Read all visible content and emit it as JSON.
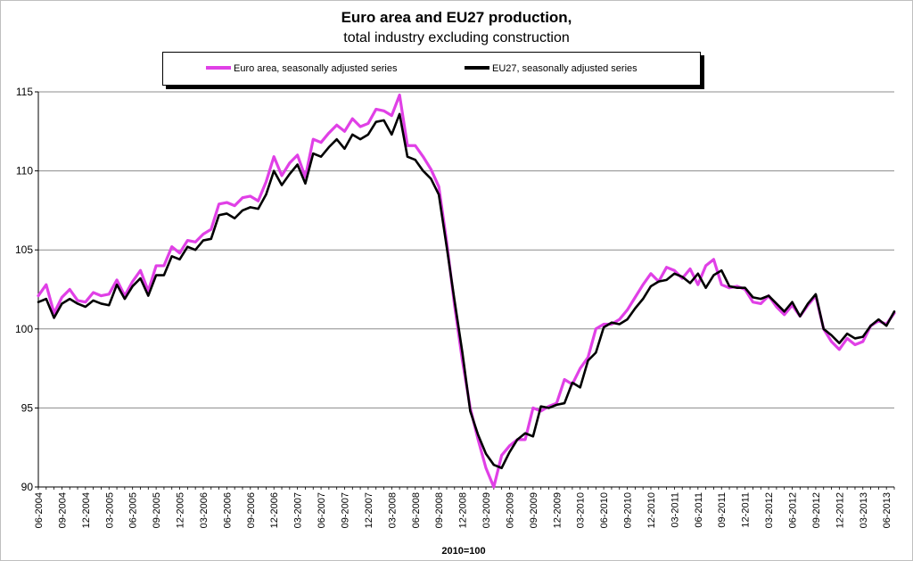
{
  "chart_data": {
    "type": "line",
    "title": "Euro area and EU27 production,",
    "subtitle": "total industry excluding construction",
    "xlabel": "2010=100",
    "ylabel": "",
    "ylim": [
      90,
      115
    ],
    "yticks": [
      90,
      95,
      100,
      105,
      110,
      115
    ],
    "grid": "horizontal",
    "legend_position": "top",
    "x_tick_labels": [
      "06-2004",
      "09-2004",
      "12-2004",
      "03-2005",
      "06-2005",
      "09-2005",
      "12-2005",
      "03-2006",
      "06-2006",
      "09-2006",
      "12-2006",
      "03-2007",
      "06-2007",
      "09-2007",
      "12-2007",
      "03-2008",
      "06-2008",
      "09-2008",
      "12-2008",
      "03-2009",
      "06-2009",
      "09-2009",
      "12-2009",
      "03-2010",
      "06-2010",
      "09-2010",
      "12-2010",
      "03-2011",
      "06-2011",
      "09-2011",
      "12-2011",
      "03-2012",
      "06-2012",
      "09-2012",
      "12-2012",
      "03-2013",
      "06-2013"
    ],
    "series": [
      {
        "name": "Euro area, seasonally adjusted series",
        "color": "#e040e6",
        "values": [
          102.1,
          102.8,
          101.0,
          102.0,
          102.5,
          101.8,
          101.7,
          102.3,
          102.1,
          102.2,
          103.1,
          102.1,
          103.0,
          103.7,
          102.4,
          104.0,
          104.0,
          105.2,
          104.8,
          105.6,
          105.5,
          106.0,
          106.3,
          107.9,
          108.0,
          107.8,
          108.3,
          108.4,
          108.1,
          109.3,
          110.9,
          109.7,
          110.5,
          111.0,
          109.6,
          112.0,
          111.8,
          112.4,
          112.9,
          112.5,
          113.3,
          112.8,
          113.0,
          113.9,
          113.8,
          113.5,
          114.8,
          111.6,
          111.6,
          110.9,
          110.1,
          109.0,
          105.5,
          101.5,
          98.0,
          95.0,
          93.0,
          91.2,
          90.0,
          92.0,
          92.6,
          93.0,
          93.0,
          95.0,
          94.8,
          95.1,
          95.3,
          96.8,
          96.5,
          97.5,
          98.2,
          100.0,
          100.3,
          100.3,
          100.6,
          101.2,
          102.0,
          102.8,
          103.5,
          103.0,
          103.9,
          103.7,
          103.2,
          103.8,
          102.8,
          104.0,
          104.4,
          102.8,
          102.6,
          102.7,
          102.5,
          101.7,
          101.6,
          102.1,
          101.4,
          100.9,
          101.5,
          100.8,
          101.5,
          102.1,
          100.0,
          99.2,
          98.7,
          99.4,
          99.0,
          99.2,
          100.2,
          100.5,
          100.3,
          101.0
        ]
      },
      {
        "name": "EU27, seasonally adjusted series",
        "color": "#000000",
        "values": [
          101.7,
          101.9,
          100.7,
          101.6,
          101.9,
          101.6,
          101.4,
          101.8,
          101.6,
          101.5,
          102.8,
          101.9,
          102.7,
          103.2,
          102.1,
          103.4,
          103.4,
          104.6,
          104.4,
          105.2,
          105.0,
          105.6,
          105.7,
          107.2,
          107.3,
          107.0,
          107.5,
          107.7,
          107.6,
          108.5,
          110.0,
          109.1,
          109.8,
          110.4,
          109.2,
          111.1,
          110.9,
          111.5,
          112.0,
          111.4,
          112.3,
          112.0,
          112.3,
          113.1,
          113.2,
          112.3,
          113.6,
          110.9,
          110.7,
          110.0,
          109.5,
          108.5,
          105.2,
          101.8,
          98.5,
          94.8,
          93.3,
          92.1,
          91.4,
          91.2,
          92.2,
          93.0,
          93.4,
          93.2,
          95.1,
          95.0,
          95.2,
          95.3,
          96.6,
          96.3,
          98.0,
          98.5,
          100.1,
          100.4,
          100.3,
          100.6,
          101.3,
          101.9,
          102.7,
          103.0,
          103.1,
          103.5,
          103.3,
          102.9,
          103.5,
          102.6,
          103.4,
          103.7,
          102.7,
          102.6,
          102.6,
          102.0,
          101.9,
          102.1,
          101.6,
          101.1,
          101.7,
          100.8,
          101.6,
          102.2,
          100.0,
          99.6,
          99.1,
          99.7,
          99.4,
          99.5,
          100.2,
          100.6,
          100.2,
          101.1
        ]
      }
    ]
  }
}
